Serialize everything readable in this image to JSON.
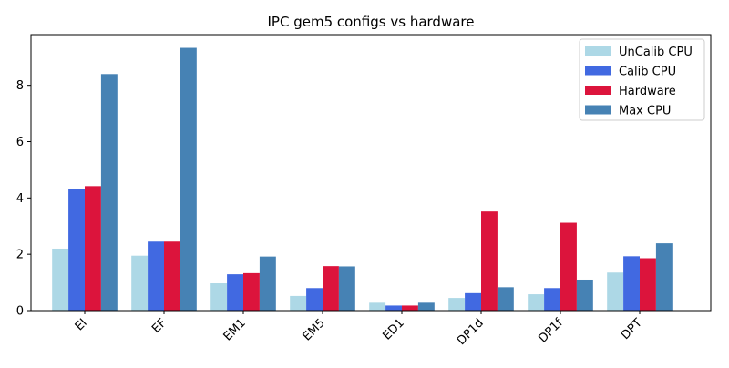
{
  "chart_data": {
    "type": "bar",
    "title": "IPC gem5 configs vs hardware",
    "xlabel": "",
    "ylabel": "",
    "categories": [
      "EI",
      "EF",
      "EM1",
      "EM5",
      "ED1",
      "DP1d",
      "DP1f",
      "DPT"
    ],
    "ylim": [
      0,
      9.8
    ],
    "yticks": [
      0,
      2,
      4,
      6,
      8
    ],
    "grid": false,
    "legend_position": "top-right",
    "series": [
      {
        "name": "UnCalib CPU",
        "color": "#add8e6",
        "values": [
          2.2,
          1.95,
          0.97,
          0.52,
          0.28,
          0.45,
          0.58,
          1.35
        ]
      },
      {
        "name": "Calib CPU",
        "color": "#4169e1",
        "values": [
          4.32,
          2.45,
          1.29,
          0.8,
          0.18,
          0.62,
          0.8,
          1.93
        ]
      },
      {
        "name": "Hardware",
        "color": "#dc143c",
        "values": [
          4.42,
          2.45,
          1.33,
          1.58,
          0.18,
          3.52,
          3.12,
          1.86
        ]
      },
      {
        "name": "Max CPU",
        "color": "#4682b4",
        "values": [
          8.4,
          9.33,
          1.92,
          1.57,
          0.28,
          0.83,
          1.1,
          2.39
        ]
      }
    ]
  }
}
